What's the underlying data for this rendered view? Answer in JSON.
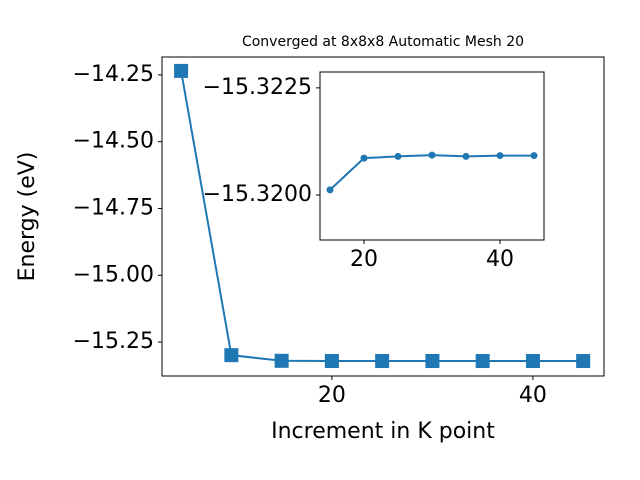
{
  "chart_data": [
    {
      "type": "line",
      "title": "Converged at 8x8x8 Automatic Mesh 20",
      "xlabel": "Increment in K point",
      "ylabel": "Energy (eV)",
      "x": [
        5,
        10,
        15,
        20,
        25,
        30,
        35,
        40,
        45
      ],
      "series": [
        {
          "color": "#1f77b4",
          "marker": "square",
          "values": [
            -14.235,
            -15.299,
            -15.3201,
            -15.3209,
            -15.3209,
            -15.3209,
            -15.3209,
            -15.3209,
            -15.3209
          ]
        }
      ],
      "xlim": [
        3.1,
        47.07
      ],
      "ylim": [
        -15.377,
        -14.183
      ],
      "xticks": [
        20,
        40
      ],
      "yticks": [
        {
          "value": -14.25,
          "label": "−14.25"
        },
        {
          "value": -14.5,
          "label": "−14.50"
        },
        {
          "value": -14.75,
          "label": "−14.75"
        },
        {
          "value": -15.0,
          "label": "−15.00"
        },
        {
          "value": -15.25,
          "label": "−15.25"
        }
      ]
    },
    {
      "type": "line",
      "x": [
        15,
        20,
        25,
        30,
        35,
        40,
        45
      ],
      "series": [
        {
          "color": "#1f77b4",
          "marker": "circle",
          "values": [
            -15.32012,
            -15.32086,
            -15.3209,
            -15.32093,
            -15.3209,
            -15.32092,
            -15.32092
          ]
        }
      ],
      "xlim": [
        13.53,
        46.47
      ],
      "ylim": [
        -15.31895,
        -15.32287
      ],
      "xticks": [
        20,
        40
      ],
      "yticks": [
        {
          "value": -15.3225,
          "label": "−15.3225"
        },
        {
          "value": -15.32,
          "label": "−15.3200"
        }
      ]
    }
  ]
}
